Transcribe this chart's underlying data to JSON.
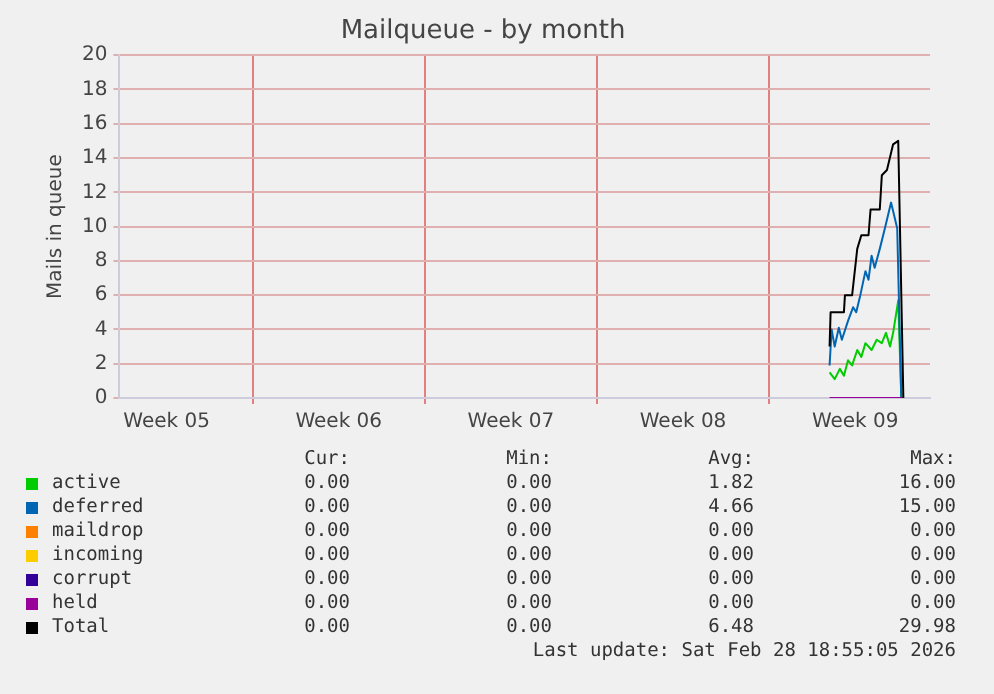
{
  "chart_data": {
    "type": "line",
    "title": "Mailqueue - by month",
    "ylabel": "Mails in queue",
    "xlim": [
      "--01-27T14:00",
      "--03-01T13:00"
    ],
    "xticks": [
      {
        "value": "--01-29T12:00",
        "label": "Week 05"
      },
      {
        "value": "--02-02",
        "label": null
      },
      {
        "value": "--02-05T12:00",
        "label": "Week 06"
      },
      {
        "value": "--02-09",
        "label": null
      },
      {
        "value": "--02-12T12:00",
        "label": "Week 07"
      },
      {
        "value": "--02-16",
        "label": null
      },
      {
        "value": "--02-19T12:00",
        "label": "Week 08"
      },
      {
        "value": "--02-23",
        "label": null
      },
      {
        "value": "--02-26T12:00",
        "label": "Week 09"
      }
    ],
    "ylim": [
      0,
      20
    ],
    "yticks": [
      0,
      2,
      4,
      6,
      8,
      10,
      12,
      14,
      16,
      18,
      20
    ],
    "grid": true,
    "legend": "bottom",
    "marker": "none",
    "line_style": "solid",
    "series": [
      {
        "name": "active",
        "color": "#00cc00",
        "x": [
          "--02-25T11:00",
          "--02-25T16:00",
          "--02-25T21:00",
          "--02-26T01:00",
          "--02-26T05:00",
          "--02-26T09:00",
          "--02-26T14:00",
          "--02-26T18:00",
          "--02-26T22:00",
          "--02-27T04:00",
          "--02-27T09:00",
          "--02-27T14:00",
          "--02-27T18:00",
          "--02-27T22:00",
          "--02-28T01:00",
          "--02-28T05:00",
          "--02-28T06:00",
          "--02-28T09:00"
        ],
        "values": [
          1.5,
          1.1,
          1.7,
          1.3,
          2.2,
          1.9,
          2.8,
          2.4,
          3.2,
          2.8,
          3.4,
          3.2,
          3.8,
          3.0,
          3.8,
          5.3,
          5.7,
          0
        ]
      },
      {
        "name": "deferred",
        "color": "#0066b3",
        "x": [
          "--02-25T11:00",
          "--02-25T13:00",
          "--02-25T16:00",
          "--02-25T20:00",
          "--02-25T23:00",
          "--02-26T05:00",
          "--02-26T10:00",
          "--02-26T13:00",
          "--02-26T17:00",
          "--02-26T22:00",
          "--02-27T01:00",
          "--02-27T04:00",
          "--02-27T07:00",
          "--02-27T12:00",
          "--02-27T17:00",
          "--02-27T23:00",
          "--02-28T05:00",
          "--02-28T09:00"
        ],
        "values": [
          1.9,
          4.0,
          3.0,
          4.1,
          3.4,
          4.5,
          5.3,
          5.0,
          6.0,
          7.4,
          6.9,
          8.3,
          7.6,
          8.7,
          9.9,
          11.4,
          9.9,
          0
        ]
      },
      {
        "name": "maildrop",
        "color": "#ff8000"
      },
      {
        "name": "incoming",
        "color": "#ffcc00"
      },
      {
        "name": "corrupt",
        "color": "#330099"
      },
      {
        "name": "held",
        "color": "#990099",
        "x": [
          "--02-25T11:00",
          "--02-28T11:00"
        ],
        "values": [
          0,
          0
        ]
      },
      {
        "name": "Total",
        "color": "#000000",
        "x": [
          "--02-25T11:00",
          "--02-25T12:00",
          "--02-26T01:00",
          "--02-26T02:00",
          "--02-26T09:00",
          "--02-26T14:00",
          "--02-26T18:00",
          "--02-27T01:00",
          "--02-27T03:00",
          "--02-27T12:00",
          "--02-27T14:00",
          "--02-27T19:00",
          "--02-28T01:00",
          "--02-28T06:00",
          "--02-28T11:00"
        ],
        "values": [
          3.0,
          5.0,
          5.0,
          6.0,
          6.0,
          8.7,
          9.5,
          9.5,
          11.0,
          11.0,
          13.0,
          13.3,
          14.8,
          15.0,
          0
        ]
      }
    ],
    "annotations": [
      "Cur:",
      "Min:",
      "Avg:",
      "Max:",
      "0.00",
      "0.00",
      "1.82",
      "16.00",
      "0.00",
      "0.00",
      "4.66",
      "15.00",
      "0.00",
      "0.00",
      "0.00",
      "0.00",
      "0.00",
      "0.00",
      "0.00",
      "0.00",
      "0.00",
      "0.00",
      "0.00",
      "0.00",
      "0.00",
      "0.00",
      "0.00",
      "0.00",
      "0.00",
      "0.00",
      "6.48",
      "29.98",
      "Last update: Sat Feb 28 18:55:05 2026"
    ]
  }
}
